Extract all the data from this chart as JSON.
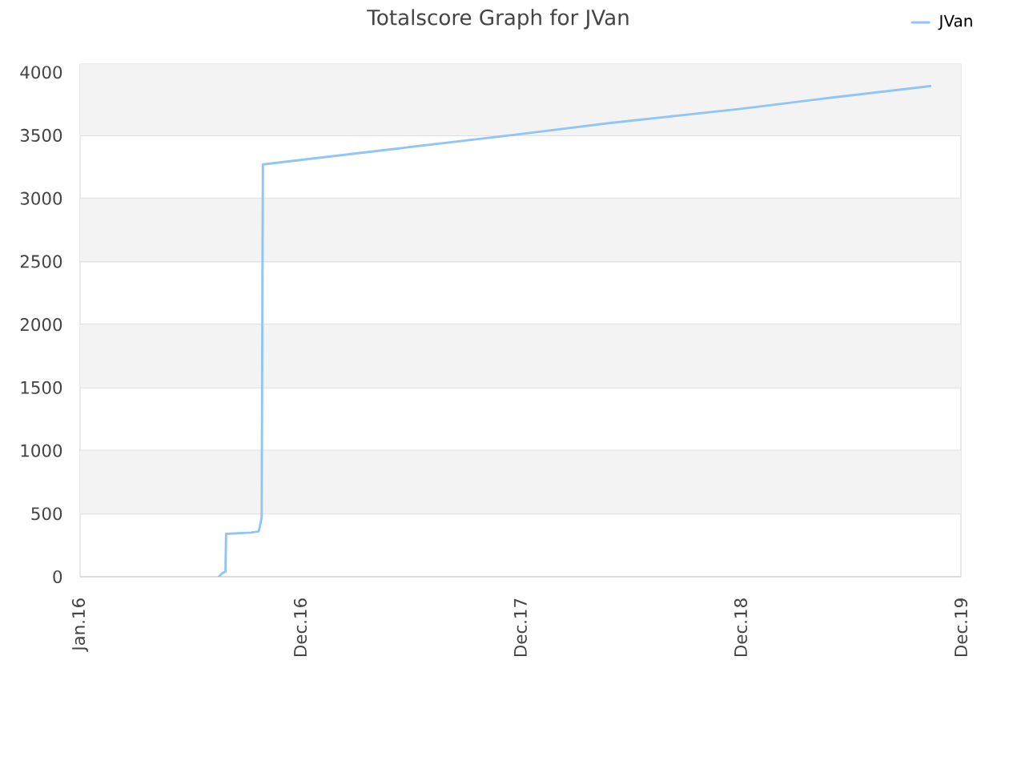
{
  "chart_data": {
    "type": "line",
    "title": "Totalscore Graph for JVan",
    "x": [
      "2016-08-18",
      "2016-08-24",
      "2016-08-29",
      "2016-08-30",
      "2016-10-10",
      "2016-10-23",
      "2016-10-25",
      "2016-10-28",
      "2016-10-30",
      "2017-06-01",
      "2017-12-31",
      "2018-06-01",
      "2018-12-31",
      "2019-06-01",
      "2019-11-10"
    ],
    "series": [
      {
        "name": "JVan",
        "color": "#90c5f5",
        "values": [
          0,
          30,
          40,
          340,
          350,
          360,
          400,
          470,
          3270,
          3390,
          3510,
          3600,
          3710,
          3800,
          3890
        ]
      }
    ],
    "xlim": [
      "2016-01-01",
      "2019-12-31"
    ],
    "ylim": [
      0,
      4065
    ],
    "xticks": [
      {
        "value": "2016-01-01",
        "label": "Jan.16"
      },
      {
        "value": "2016-12-31",
        "label": "Dec.16"
      },
      {
        "value": "2017-12-31",
        "label": "Dec.17"
      },
      {
        "value": "2018-12-31",
        "label": "Dec.18"
      },
      {
        "value": "2019-12-31",
        "label": "Dec.19"
      }
    ],
    "yticks": [
      0,
      500,
      1000,
      1500,
      2000,
      2500,
      3000,
      3500,
      4000
    ],
    "bands": [
      {
        "axis": "y",
        "from": 500,
        "to": 1000,
        "color": "#f3f3f3"
      },
      {
        "axis": "y",
        "from": 1500,
        "to": 2000,
        "color": "#f3f3f3"
      },
      {
        "axis": "y",
        "from": 2500,
        "to": 3000,
        "color": "#f3f3f3"
      },
      {
        "axis": "y",
        "from": 3500,
        "to": 4065,
        "color": "#f3f3f3"
      }
    ],
    "grid": "y",
    "legend": "top right"
  }
}
